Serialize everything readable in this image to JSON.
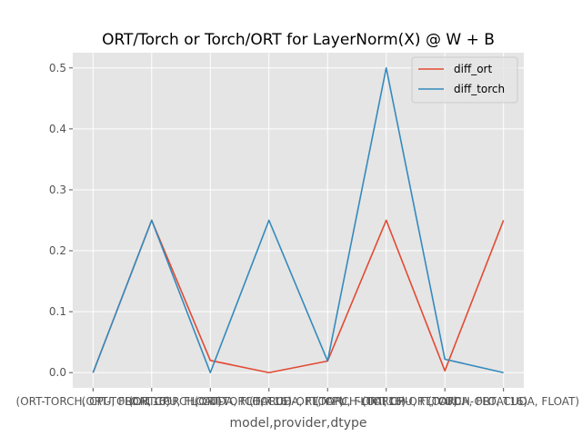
{
  "chart_data": {
    "type": "line",
    "title": "ORT/Torch or Torch/ORT for LayerNorm(X) @ W + B",
    "xlabel": "model,provider,dtype",
    "ylabel": "",
    "categories": [
      "(ORT-TORCH, CPU, FLOAT16)",
      "(ORT-TORCH, CPU, FLOAT)",
      "(ORT-TORCH, CUDA, FLOAT16)",
      "(ORT-TORCH, CUDA, FLOAT)",
      "(TORCH-ORT, CPU, FLOAT16)",
      "(TORCH-ORT, CPU, FLOAT)",
      "(TORCH-ORT, CUDA, FLOAT16)",
      "(TORCH-ORT, CUDA, FLOAT)"
    ],
    "series": [
      {
        "name": "diff_ort",
        "color": "#e24a33",
        "values": [
          0.0,
          0.25,
          0.02,
          0.0,
          0.019,
          0.25,
          0.003,
          0.25
        ]
      },
      {
        "name": "diff_torch",
        "color": "#348abd",
        "values": [
          0.0,
          0.25,
          0.0,
          0.25,
          0.019,
          0.5,
          0.022,
          0.0
        ]
      }
    ],
    "yticks": [
      "0.0",
      "0.1",
      "0.2",
      "0.3",
      "0.4",
      "0.5"
    ],
    "ylim": [
      -0.025,
      0.525
    ],
    "grid": true,
    "legend_position": "upper right",
    "style": "ggplot"
  }
}
